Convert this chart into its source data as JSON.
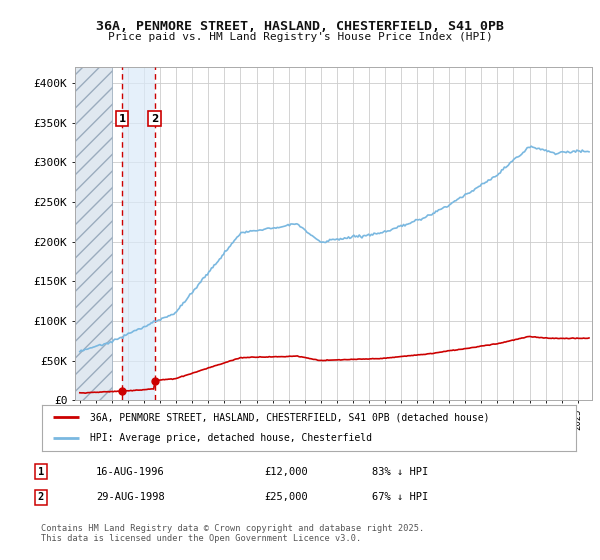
{
  "title_line1": "36A, PENMORE STREET, HASLAND, CHESTERFIELD, S41 0PB",
  "title_line2": "Price paid vs. HM Land Registry's House Price Index (HPI)",
  "ylim": [
    0,
    420000
  ],
  "xlim_start": 1993.7,
  "xlim_end": 2025.9,
  "yticks": [
    0,
    50000,
    100000,
    150000,
    200000,
    250000,
    300000,
    350000,
    400000
  ],
  "ytick_labels": [
    "£0",
    "£50K",
    "£100K",
    "£150K",
    "£200K",
    "£250K",
    "£300K",
    "£350K",
    "£400K"
  ],
  "sale1_date": 1996.625,
  "sale1_price": 12000,
  "sale2_date": 1998.66,
  "sale2_price": 25000,
  "hpi_color": "#7ab8e0",
  "price_color": "#cc0000",
  "legend_line1": "36A, PENMORE STREET, HASLAND, CHESTERFIELD, S41 0PB (detached house)",
  "legend_line2": "HPI: Average price, detached house, Chesterfield",
  "table_row1": [
    "1",
    "16-AUG-1996",
    "£12,000",
    "83% ↓ HPI"
  ],
  "table_row2": [
    "2",
    "29-AUG-1998",
    "£25,000",
    "67% ↓ HPI"
  ],
  "footer": "Contains HM Land Registry data © Crown copyright and database right 2025.\nThis data is licensed under the Open Government Licence v3.0.",
  "background_color": "#ffffff",
  "grid_color": "#cccccc",
  "hatch_x_end": 1996.0
}
